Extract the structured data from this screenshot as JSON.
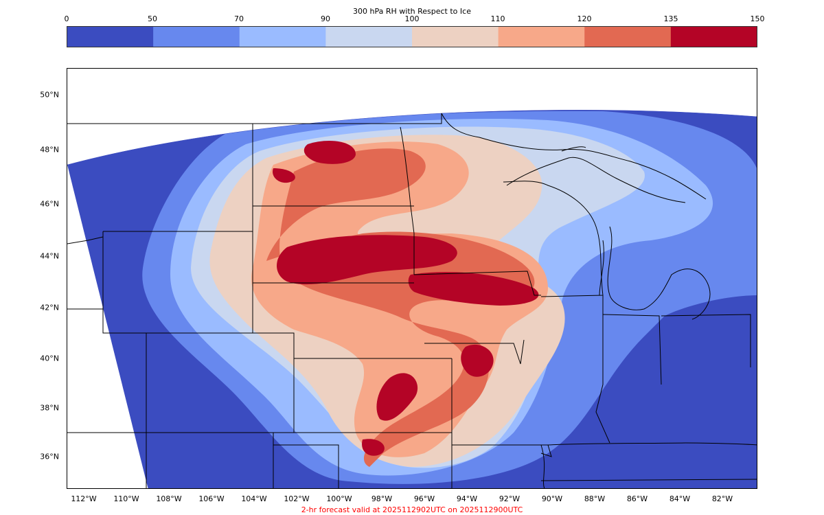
{
  "colorbar": {
    "title": "300 hPa RH with Respect to Ice",
    "ticks": [
      "0",
      "50",
      "70",
      "90",
      "100",
      "110",
      "120",
      "135",
      "150"
    ],
    "colors": [
      "#3b4cc0",
      "#6788ee",
      "#9abbff",
      "#c9d7f0",
      "#edd1c2",
      "#f7a889",
      "#e26952",
      "#b40426"
    ]
  },
  "axes": {
    "lat_labels": [
      "50°N",
      "48°N",
      "46°N",
      "44°N",
      "42°N",
      "40°N",
      "38°N",
      "36°N"
    ],
    "lon_labels": [
      "112°W",
      "110°W",
      "108°W",
      "106°W",
      "104°W",
      "102°W",
      "100°W",
      "98°W",
      "96°W",
      "94°W",
      "92°W",
      "90°W",
      "88°W",
      "86°W",
      "84°W",
      "82°W"
    ]
  },
  "footer": "2-hr forecast valid at 2025112902UTC on 2025112900UTC",
  "map": {
    "background_color": "#ffffff",
    "boundary_color": "#000000"
  }
}
